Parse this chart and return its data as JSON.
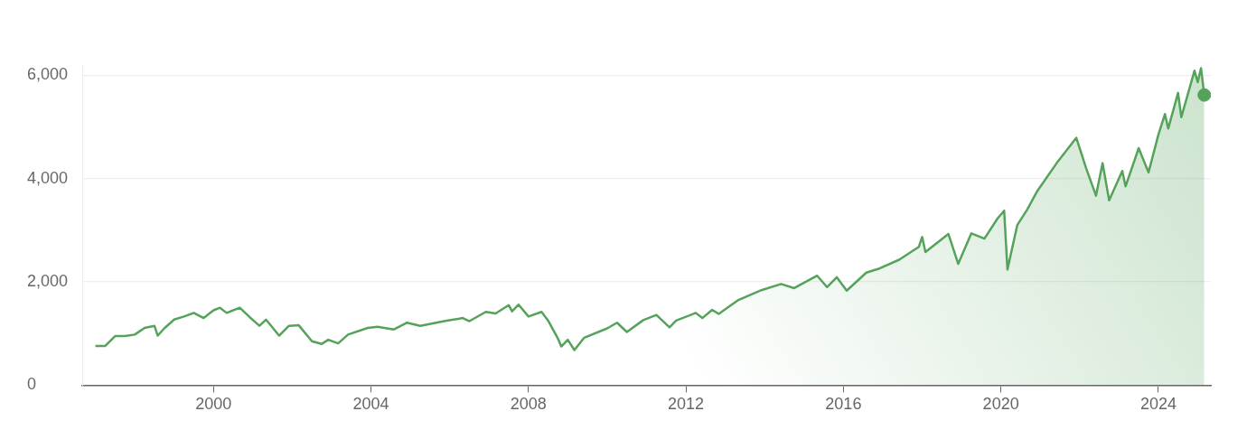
{
  "chart_data": {
    "type": "area",
    "xlim": [
      "1996-09",
      "2025-05"
    ],
    "ylim": [
      0,
      6200
    ],
    "xticks": [
      "2000",
      "2004",
      "2008",
      "2012",
      "2016",
      "2020",
      "2024"
    ],
    "yticks": [
      {
        "value": 0,
        "label": "0"
      },
      {
        "value": 2000,
        "label": "2,000"
      },
      {
        "value": 4000,
        "label": "4,000"
      },
      {
        "value": 6000,
        "label": "6,000"
      }
    ],
    "grid": "y",
    "legend": false,
    "series": [
      {
        "type": "area",
        "color": "#55a35a",
        "x": [
          "1997-01",
          "1997-04",
          "1997-07",
          "1997-10",
          "1998-01",
          "1998-04",
          "1998-07",
          "1998-08",
          "1998-10",
          "1999-01",
          "1999-04",
          "1999-07",
          "1999-10",
          "2000-01",
          "2000-03",
          "2000-05",
          "2000-09",
          "2000-12",
          "2001-03",
          "2001-05",
          "2001-09",
          "2001-12",
          "2002-03",
          "2002-07",
          "2002-10",
          "2002-12",
          "2003-03",
          "2003-06",
          "2003-12",
          "2004-03",
          "2004-08",
          "2004-12",
          "2005-04",
          "2005-12",
          "2006-05",
          "2006-07",
          "2006-12",
          "2007-03",
          "2007-07",
          "2007-08",
          "2007-10",
          "2008-01",
          "2008-05",
          "2008-07",
          "2008-10",
          "2008-11",
          "2009-01",
          "2009-03",
          "2009-06",
          "2010-01",
          "2010-04",
          "2010-07",
          "2010-12",
          "2011-04",
          "2011-08",
          "2011-10",
          "2012-04",
          "2012-06",
          "2012-09",
          "2012-11",
          "2013-05",
          "2013-12",
          "2014-06",
          "2014-10",
          "2015-05",
          "2015-08",
          "2015-11",
          "2016-02",
          "2016-08",
          "2016-12",
          "2017-06",
          "2017-12",
          "2018-01",
          "2018-02",
          "2018-09",
          "2018-12",
          "2019-04",
          "2019-08",
          "2019-12",
          "2020-02",
          "2020-03",
          "2020-06",
          "2020-09",
          "2020-12",
          "2021-06",
          "2021-12",
          "2022-03",
          "2022-06",
          "2022-08",
          "2022-10",
          "2023-02",
          "2023-03",
          "2023-07",
          "2023-10",
          "2024-01",
          "2024-03",
          "2024-04",
          "2024-07",
          "2024-08",
          "2024-12",
          "2025-01",
          "2025-02",
          "2025-03"
        ],
        "values": [
          760,
          760,
          950,
          950,
          980,
          1110,
          1150,
          960,
          1100,
          1270,
          1330,
          1400,
          1300,
          1450,
          1500,
          1400,
          1500,
          1320,
          1150,
          1270,
          960,
          1150,
          1160,
          850,
          800,
          880,
          810,
          980,
          1110,
          1130,
          1080,
          1210,
          1150,
          1250,
          1300,
          1240,
          1420,
          1390,
          1550,
          1430,
          1560,
          1330,
          1420,
          1250,
          900,
          750,
          880,
          680,
          920,
          1100,
          1210,
          1030,
          1260,
          1360,
          1120,
          1250,
          1400,
          1300,
          1460,
          1380,
          1650,
          1840,
          1960,
          1880,
          2120,
          1900,
          2090,
          1830,
          2180,
          2260,
          2430,
          2680,
          2870,
          2580,
          2930,
          2350,
          2940,
          2840,
          3230,
          3380,
          2240,
          3100,
          3400,
          3750,
          4300,
          4790,
          4200,
          3670,
          4300,
          3580,
          4150,
          3850,
          4590,
          4120,
          4850,
          5250,
          4970,
          5660,
          5190,
          6090,
          5870,
          6140,
          5620
        ]
      },
      {
        "type": "scatter",
        "color": "#55a35a",
        "marker": "circle",
        "x": [
          "2025-03"
        ],
        "values": [
          5620
        ]
      }
    ]
  }
}
